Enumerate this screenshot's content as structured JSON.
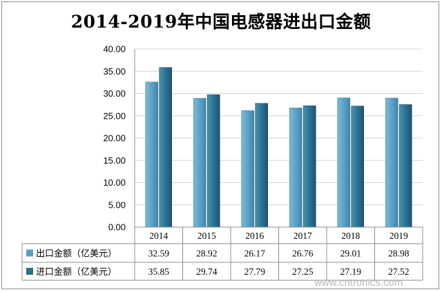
{
  "title": "2014-2019年中国电感器进出口金额",
  "chart_data": {
    "type": "bar",
    "title": "2014-2019年中国电感器进出口金额",
    "categories": [
      "2014",
      "2015",
      "2016",
      "2017",
      "2018",
      "2019"
    ],
    "series": [
      {
        "name": "出口金额（亿美元）",
        "values": [
          32.59,
          28.92,
          26.17,
          26.76,
          29.01,
          28.98
        ],
        "labels": [
          "32.59",
          "28.92",
          "26.17",
          "26.76",
          "29.01",
          "28.98"
        ],
        "color": "#5b9fc4"
      },
      {
        "name": "进口金额（亿美元）",
        "values": [
          35.85,
          29.74,
          27.79,
          27.25,
          27.19,
          27.52
        ],
        "labels": [
          "35.85",
          "29.74",
          "27.79",
          "27.25",
          "27.19",
          "27.52"
        ],
        "color": "#2d6f8f"
      }
    ],
    "ylim": [
      0,
      40
    ],
    "y_ticks": [
      "0.00",
      "5.00",
      "10.00",
      "15.00",
      "20.00",
      "25.00",
      "30.00",
      "35.00",
      "40.00"
    ],
    "grid": true,
    "legend": "data-table",
    "data_table": true
  },
  "watermark": "www.cntronics.com"
}
